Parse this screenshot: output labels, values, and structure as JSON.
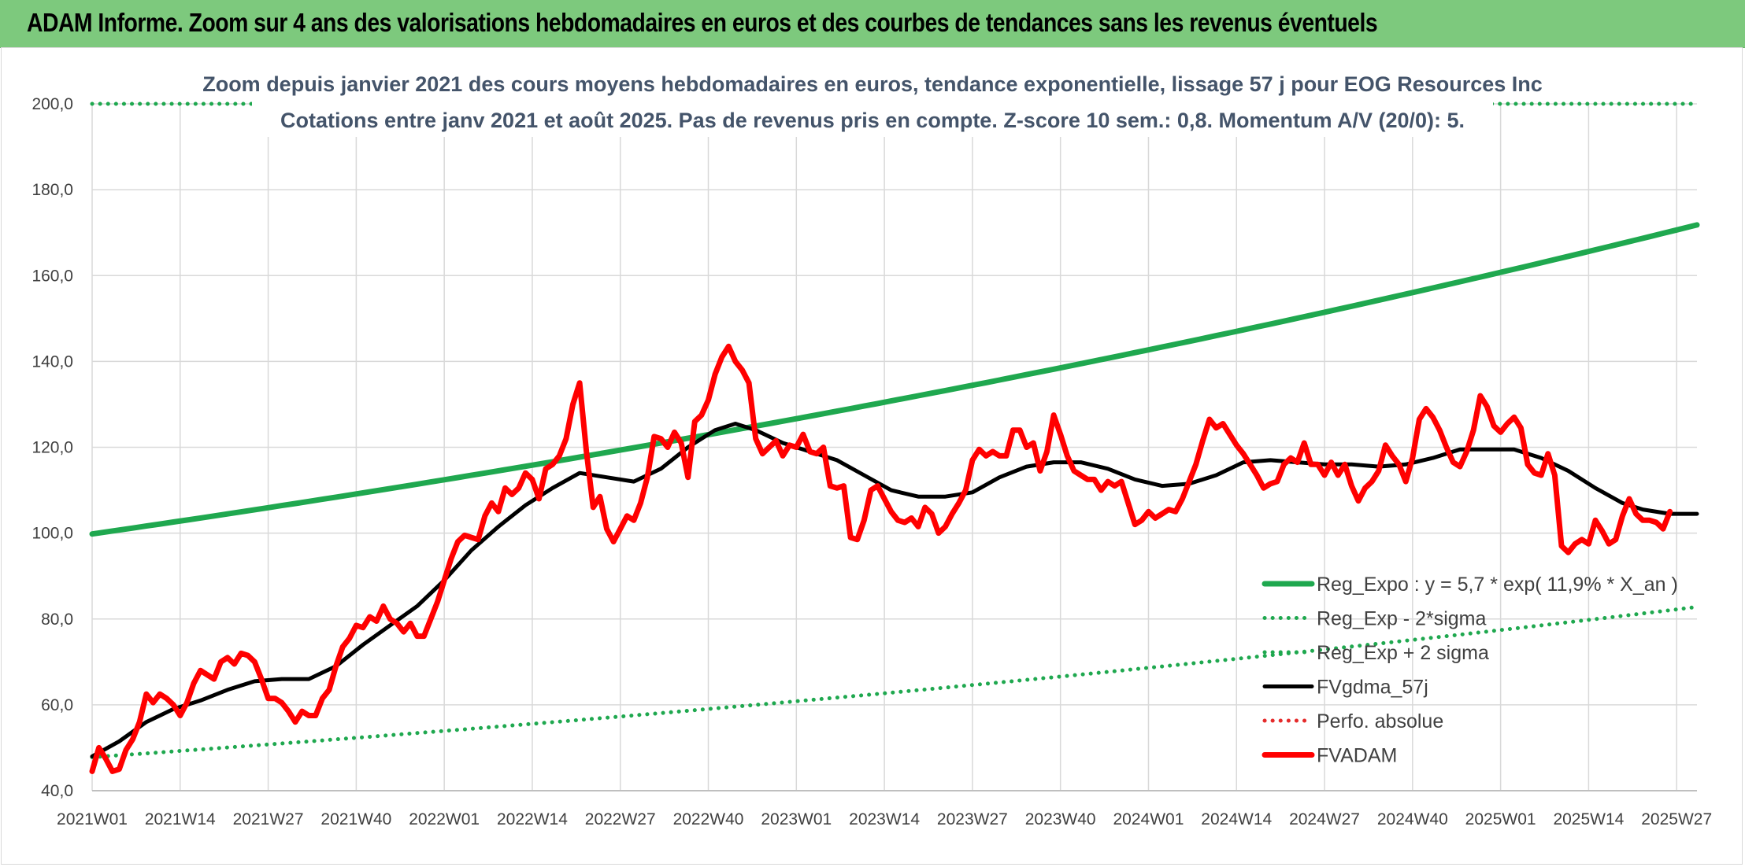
{
  "banner": {
    "title": "ADAM Informe. Zoom sur 4 ans des valorisations hebdomadaires en euros et des courbes de tendances sans les revenus éventuels"
  },
  "chart_data": {
    "type": "line",
    "title": "Zoom depuis janvier 2021 des cours moyens hebdomadaires en euros, tendance exponentielle, lissage 57 j pour EOG Resources Inc",
    "subtitle": "Cotations entre janv 2021 et août 2025. Pas de revenus pris en compte. Z-score 10 sem.: 0,8. Momentum A/V (20/0): 5.",
    "ylim": [
      40,
      200
    ],
    "y_ticks": [
      "40,0",
      "60,0",
      "80,0",
      "100,0",
      "120,0",
      "140,0",
      "160,0",
      "180,0",
      "200,0"
    ],
    "x_ticks": [
      "2021W01",
      "2021W14",
      "2021W27",
      "2021W40",
      "2022W01",
      "2022W14",
      "2022W27",
      "2022W40",
      "2023W01",
      "2023W14",
      "2023W27",
      "2023W40",
      "2024W01",
      "2024W14",
      "2024W27",
      "2024W40",
      "2025W01",
      "2025W14",
      "2025W27"
    ],
    "x_tick_index": [
      0,
      13,
      26,
      39,
      52,
      65,
      78,
      91,
      104,
      117,
      130,
      143,
      156,
      169,
      182,
      195,
      208,
      221,
      234
    ],
    "n_weeks": 238,
    "grid": true,
    "legend_position": "bottom-right",
    "series": [
      {
        "name": "Reg_Expo : y = 5,7 * exp( 11,9% *  X_an )",
        "color": "#1fa84f",
        "style": "solid-thick",
        "kind": "exp",
        "start": 99.8,
        "end": 171.8
      },
      {
        "name": "Reg_Exp - 2*sigma",
        "color": "#1fa84f",
        "style": "dotted",
        "kind": "exp",
        "start": 47.8,
        "end": 82.8
      },
      {
        "name": "Reg_Exp + 2 sigma",
        "color": "#1fa84f",
        "style": "dotted",
        "kind": "exp",
        "start": 200,
        "end": 200
      },
      {
        "name": "FVgdma_57j",
        "color": "#000000",
        "style": "solid",
        "kind": "points",
        "points": [
          [
            0,
            48
          ],
          [
            4,
            51.5
          ],
          [
            8,
            56
          ],
          [
            12,
            59
          ],
          [
            16,
            61
          ],
          [
            20,
            63.5
          ],
          [
            24,
            65.5
          ],
          [
            28,
            66
          ],
          [
            32,
            66
          ],
          [
            36,
            69
          ],
          [
            40,
            74
          ],
          [
            44,
            78.5
          ],
          [
            48,
            83
          ],
          [
            52,
            89
          ],
          [
            56,
            96
          ],
          [
            60,
            101.5
          ],
          [
            64,
            106.5
          ],
          [
            68,
            110.5
          ],
          [
            72,
            114
          ],
          [
            76,
            113
          ],
          [
            80,
            112
          ],
          [
            84,
            115
          ],
          [
            88,
            120
          ],
          [
            92,
            124
          ],
          [
            95,
            125.5
          ],
          [
            98,
            124
          ],
          [
            102,
            121
          ],
          [
            106,
            119
          ],
          [
            110,
            117
          ],
          [
            114,
            113.5
          ],
          [
            118,
            110
          ],
          [
            122,
            108.5
          ],
          [
            126,
            108.5
          ],
          [
            130,
            109.5
          ],
          [
            134,
            113
          ],
          [
            138,
            115.5
          ],
          [
            142,
            116.5
          ],
          [
            146,
            116.5
          ],
          [
            150,
            115
          ],
          [
            154,
            112.5
          ],
          [
            158,
            111
          ],
          [
            162,
            111.5
          ],
          [
            166,
            113.5
          ],
          [
            170,
            116.5
          ],
          [
            174,
            117
          ],
          [
            178,
            116.5
          ],
          [
            182,
            116
          ],
          [
            186,
            116
          ],
          [
            190,
            115.5
          ],
          [
            194,
            116
          ],
          [
            198,
            117.5
          ],
          [
            202,
            119.5
          ],
          [
            206,
            119.5
          ],
          [
            210,
            119.5
          ],
          [
            214,
            117.5
          ],
          [
            218,
            114.5
          ],
          [
            222,
            110.5
          ],
          [
            226,
            107
          ],
          [
            229,
            105.5
          ],
          [
            233,
            104.5
          ],
          [
            237,
            104.5
          ]
        ]
      },
      {
        "name": "Perfo. absolue",
        "color": "#e52b2b",
        "style": "dotted",
        "kind": "none"
      },
      {
        "name": "FVADAM",
        "color": "#ff0000",
        "style": "solid-thick",
        "kind": "points",
        "points": [
          [
            0,
            44.5
          ],
          [
            1,
            50
          ],
          [
            2,
            47.5
          ],
          [
            3,
            44.5
          ],
          [
            4,
            45
          ],
          [
            5,
            49.5
          ],
          [
            6,
            52
          ],
          [
            7,
            56
          ],
          [
            8,
            62.5
          ],
          [
            9,
            60.5
          ],
          [
            10,
            62.5
          ],
          [
            11,
            61.5
          ],
          [
            12,
            60
          ],
          [
            13,
            57.5
          ],
          [
            14,
            60.5
          ],
          [
            15,
            65
          ],
          [
            16,
            68
          ],
          [
            17,
            67
          ],
          [
            18,
            66
          ],
          [
            19,
            70
          ],
          [
            20,
            71
          ],
          [
            21,
            69.5
          ],
          [
            22,
            72
          ],
          [
            23,
            71.5
          ],
          [
            24,
            70
          ],
          [
            25,
            66
          ],
          [
            26,
            61.5
          ],
          [
            27,
            61.5
          ],
          [
            28,
            60.5
          ],
          [
            29,
            58.5
          ],
          [
            30,
            56
          ],
          [
            31,
            58.5
          ],
          [
            32,
            57.5
          ],
          [
            33,
            57.5
          ],
          [
            34,
            61.5
          ],
          [
            35,
            63.5
          ],
          [
            36,
            69
          ],
          [
            37,
            73.5
          ],
          [
            38,
            75.5
          ],
          [
            39,
            78.5
          ],
          [
            40,
            78
          ],
          [
            41,
            80.5
          ],
          [
            42,
            79.5
          ],
          [
            43,
            83
          ],
          [
            44,
            80
          ],
          [
            45,
            79
          ],
          [
            46,
            77
          ],
          [
            47,
            79
          ],
          [
            48,
            76
          ],
          [
            49,
            76
          ],
          [
            50,
            80
          ],
          [
            51,
            84
          ],
          [
            52,
            89
          ],
          [
            53,
            94
          ],
          [
            54,
            98
          ],
          [
            55,
            99.5
          ],
          [
            56,
            99
          ],
          [
            57,
            98.5
          ],
          [
            58,
            104
          ],
          [
            59,
            107
          ],
          [
            60,
            105
          ],
          [
            61,
            110.5
          ],
          [
            62,
            109
          ],
          [
            63,
            110.5
          ],
          [
            64,
            114
          ],
          [
            65,
            112.5
          ],
          [
            66,
            108
          ],
          [
            67,
            115
          ],
          [
            68,
            116
          ],
          [
            69,
            118
          ],
          [
            70,
            122
          ],
          [
            71,
            130
          ],
          [
            72,
            135
          ],
          [
            73,
            119
          ],
          [
            74,
            106
          ],
          [
            75,
            108.5
          ],
          [
            76,
            101
          ],
          [
            77,
            98
          ],
          [
            78,
            101
          ],
          [
            79,
            104
          ],
          [
            80,
            103
          ],
          [
            81,
            107
          ],
          [
            82,
            113
          ],
          [
            83,
            122.5
          ],
          [
            84,
            122
          ],
          [
            85,
            120
          ],
          [
            86,
            123.5
          ],
          [
            87,
            121
          ],
          [
            88,
            113
          ],
          [
            89,
            126
          ],
          [
            90,
            127.5
          ],
          [
            91,
            131
          ],
          [
            92,
            137
          ],
          [
            93,
            141
          ],
          [
            94,
            143.5
          ],
          [
            95,
            140
          ],
          [
            96,
            138
          ],
          [
            97,
            135
          ],
          [
            98,
            122
          ],
          [
            99,
            118.5
          ],
          [
            100,
            120
          ],
          [
            101,
            121.5
          ],
          [
            102,
            118
          ],
          [
            103,
            120.5
          ],
          [
            104,
            120
          ],
          [
            105,
            123
          ],
          [
            106,
            119
          ],
          [
            107,
            118.5
          ],
          [
            108,
            120
          ],
          [
            109,
            111
          ],
          [
            110,
            110.5
          ],
          [
            111,
            111
          ],
          [
            112,
            99
          ],
          [
            113,
            98.5
          ],
          [
            114,
            103
          ],
          [
            115,
            110
          ],
          [
            116,
            111
          ],
          [
            117,
            108
          ],
          [
            118,
            105
          ],
          [
            119,
            103
          ],
          [
            120,
            102.5
          ],
          [
            121,
            103.5
          ],
          [
            122,
            101.5
          ],
          [
            123,
            106
          ],
          [
            124,
            104.5
          ],
          [
            125,
            100
          ],
          [
            126,
            101.5
          ],
          [
            127,
            104.5
          ],
          [
            128,
            107
          ],
          [
            129,
            110
          ],
          [
            130,
            117
          ],
          [
            131,
            119.5
          ],
          [
            132,
            118
          ],
          [
            133,
            119
          ],
          [
            134,
            118
          ],
          [
            135,
            118
          ],
          [
            136,
            124
          ],
          [
            137,
            124
          ],
          [
            138,
            120
          ],
          [
            139,
            121
          ],
          [
            140,
            114.5
          ],
          [
            141,
            119
          ],
          [
            142,
            127.5
          ],
          [
            143,
            123
          ],
          [
            144,
            118
          ],
          [
            145,
            114.5
          ],
          [
            146,
            113.5
          ],
          [
            147,
            112.5
          ],
          [
            148,
            112.5
          ],
          [
            149,
            110
          ],
          [
            150,
            112
          ],
          [
            151,
            111
          ],
          [
            152,
            112
          ],
          [
            153,
            107
          ],
          [
            154,
            102
          ],
          [
            155,
            103
          ],
          [
            156,
            105
          ],
          [
            157,
            103.5
          ],
          [
            158,
            104.5
          ],
          [
            159,
            105.5
          ],
          [
            160,
            105
          ],
          [
            161,
            108
          ],
          [
            162,
            112
          ],
          [
            163,
            116
          ],
          [
            164,
            121.5
          ],
          [
            165,
            126.5
          ],
          [
            166,
            124.5
          ],
          [
            167,
            125.5
          ],
          [
            168,
            123
          ],
          [
            169,
            120.5
          ],
          [
            170,
            118.5
          ],
          [
            171,
            116
          ],
          [
            172,
            113.5
          ],
          [
            173,
            110.5
          ],
          [
            174,
            111.5
          ],
          [
            175,
            112
          ],
          [
            176,
            116
          ],
          [
            177,
            117.5
          ],
          [
            178,
            116.5
          ],
          [
            179,
            121
          ],
          [
            180,
            116
          ],
          [
            181,
            116
          ],
          [
            182,
            113.5
          ],
          [
            183,
            116.5
          ],
          [
            184,
            113.5
          ],
          [
            185,
            116
          ],
          [
            186,
            111
          ],
          [
            187,
            107.5
          ],
          [
            188,
            110.5
          ],
          [
            189,
            112
          ],
          [
            190,
            114.5
          ],
          [
            191,
            120.5
          ],
          [
            192,
            118
          ],
          [
            193,
            116
          ],
          [
            194,
            112
          ],
          [
            195,
            117.5
          ],
          [
            196,
            126.5
          ],
          [
            197,
            129
          ],
          [
            198,
            127
          ],
          [
            199,
            124
          ],
          [
            200,
            120
          ],
          [
            201,
            116.5
          ],
          [
            202,
            115.5
          ],
          [
            203,
            119
          ],
          [
            204,
            124
          ],
          [
            205,
            132
          ],
          [
            206,
            129.5
          ],
          [
            207,
            125
          ],
          [
            208,
            123.5
          ],
          [
            209,
            125.5
          ],
          [
            210,
            127
          ],
          [
            211,
            124.5
          ],
          [
            212,
            116
          ],
          [
            213,
            114
          ],
          [
            214,
            113.5
          ],
          [
            215,
            118.5
          ],
          [
            216,
            113.5
          ],
          [
            217,
            97
          ],
          [
            218,
            95.5
          ],
          [
            219,
            97.5
          ],
          [
            220,
            98.5
          ],
          [
            221,
            97.5
          ],
          [
            222,
            103
          ],
          [
            223,
            100.5
          ],
          [
            224,
            97.5
          ],
          [
            225,
            98.5
          ],
          [
            226,
            104
          ],
          [
            227,
            108
          ],
          [
            228,
            104.5
          ],
          [
            229,
            103
          ],
          [
            230,
            103
          ],
          [
            231,
            102.5
          ],
          [
            232,
            101
          ],
          [
            233,
            105
          ]
        ]
      }
    ]
  }
}
